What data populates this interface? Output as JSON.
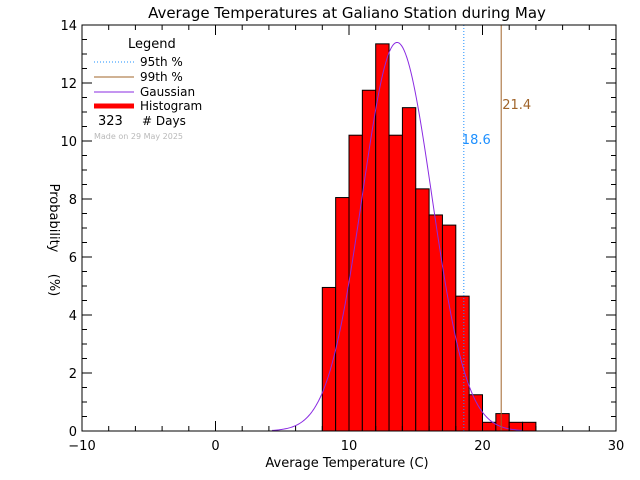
{
  "chart_data": {
    "type": "bar",
    "title": "Average Temperatures at Galiano Station during May",
    "xlabel": "Average Temperature (C)",
    "ylabel_top": "Probability",
    "ylabel_bottom": "(%)",
    "xlim": [
      -10,
      30
    ],
    "ylim": [
      0,
      14
    ],
    "x_ticks": [
      -10,
      0,
      10,
      20,
      30
    ],
    "y_ticks": [
      0,
      2,
      4,
      6,
      8,
      10,
      12,
      14
    ],
    "bin_width": 1,
    "bins": [
      {
        "x0": 8,
        "value": 4.95
      },
      {
        "x0": 9,
        "value": 8.05
      },
      {
        "x0": 10,
        "value": 10.2
      },
      {
        "x0": 11,
        "value": 11.75
      },
      {
        "x0": 12,
        "value": 13.35
      },
      {
        "x0": 13,
        "value": 10.2
      },
      {
        "x0": 14,
        "value": 11.15
      },
      {
        "x0": 15,
        "value": 8.35
      },
      {
        "x0": 16,
        "value": 7.45
      },
      {
        "x0": 17,
        "value": 7.1
      },
      {
        "x0": 18,
        "value": 4.65
      },
      {
        "x0": 19,
        "value": 1.25
      },
      {
        "x0": 20,
        "value": 0.3
      },
      {
        "x0": 21,
        "value": 0.6
      },
      {
        "x0": 22,
        "value": 0.3
      },
      {
        "x0": 23,
        "value": 0.3
      }
    ],
    "gaussian": {
      "mean": 13.6,
      "peak": 13.4,
      "sigma": 2.6
    },
    "percentile_95": {
      "value": 18.6,
      "label": "18.6",
      "color": "#1e90ff"
    },
    "percentile_99": {
      "value": 21.4,
      "label": "21.4",
      "color": "#a0642a"
    },
    "colors": {
      "histogram": "#ff0000",
      "gaussian": "#8a2be2"
    },
    "legend": {
      "title": "Legend",
      "placement": "top-left",
      "entries": [
        {
          "label": "95th %",
          "style": "dotted"
        },
        {
          "label": "99th %",
          "style": "solid"
        },
        {
          "label": "Gaussian",
          "style": "solid"
        },
        {
          "label": "Histogram",
          "style": "thick"
        }
      ],
      "days_count": "323",
      "days_label": "# Days"
    },
    "made_on": "Made on 29 May 2025"
  }
}
